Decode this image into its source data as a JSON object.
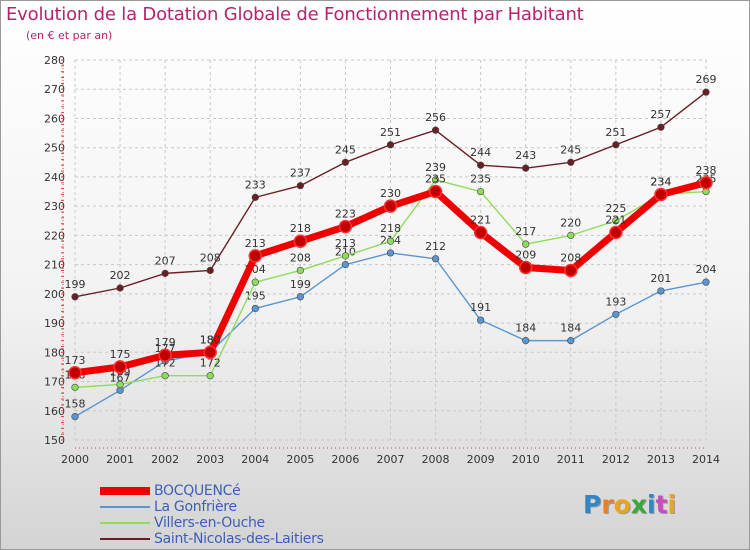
{
  "header": {
    "title": "Evolution de la Dotation Globale de Fonctionnement par Habitant",
    "subtitle": "(en € et par an)"
  },
  "branding": {
    "logo_letters": [
      "P",
      "r",
      "o",
      "x",
      "i",
      "t",
      "i"
    ],
    "logo_colors": [
      "#2f86c9",
      "#e8802a",
      "#e8a61e",
      "#3aa63c",
      "#2f86c9",
      "#c84bbf",
      "#e8a61e"
    ]
  },
  "chart_data": {
    "type": "line",
    "title": "Evolution de la Dotation Globale de Fonctionnement par Habitant",
    "subtitle": "(en € et par an)",
    "xlabel": "",
    "ylabel": "",
    "x": [
      2000,
      2001,
      2002,
      2003,
      2004,
      2005,
      2006,
      2007,
      2008,
      2009,
      2010,
      2011,
      2012,
      2013,
      2014
    ],
    "ylim": [
      150,
      280
    ],
    "yticks": [
      150,
      160,
      170,
      180,
      190,
      200,
      210,
      220,
      230,
      240,
      250,
      260,
      270,
      280
    ],
    "grid": true,
    "legend_position": "bottom-left",
    "series": [
      {
        "name": "Saint-Nicolas-des-Laitiers",
        "color": "#6b1f24",
        "values": [
          199,
          202,
          207,
          208,
          233,
          237,
          245,
          251,
          256,
          244,
          243,
          245,
          251,
          257,
          269
        ]
      },
      {
        "name": "La Gonfrière",
        "color": "#5a96cf",
        "values": [
          158,
          167,
          177,
          180,
          195,
          199,
          210,
          214,
          212,
          191,
          184,
          184,
          193,
          201,
          204
        ]
      },
      {
        "name": "Villers-en-Ouche",
        "color": "#8fdc5c",
        "values": [
          168,
          169,
          172,
          172,
          204,
          208,
          213,
          218,
          239,
          235,
          217,
          220,
          225,
          234,
          235
        ]
      },
      {
        "name": "BOCQUENCé",
        "color": "#ee0000",
        "values": [
          173,
          175,
          179,
          180,
          213,
          218,
          223,
          230,
          235,
          221,
          209,
          208,
          221,
          234,
          238
        ]
      }
    ],
    "legend": [
      {
        "name": "BOCQUENCé",
        "color": "#ee0000"
      },
      {
        "name": "La Gonfrière",
        "color": "#5a96cf"
      },
      {
        "name": "Villers-en-Ouche",
        "color": "#8fdc5c"
      },
      {
        "name": "Saint-Nicolas-des-Laitiers",
        "color": "#6b1f24"
      }
    ]
  }
}
